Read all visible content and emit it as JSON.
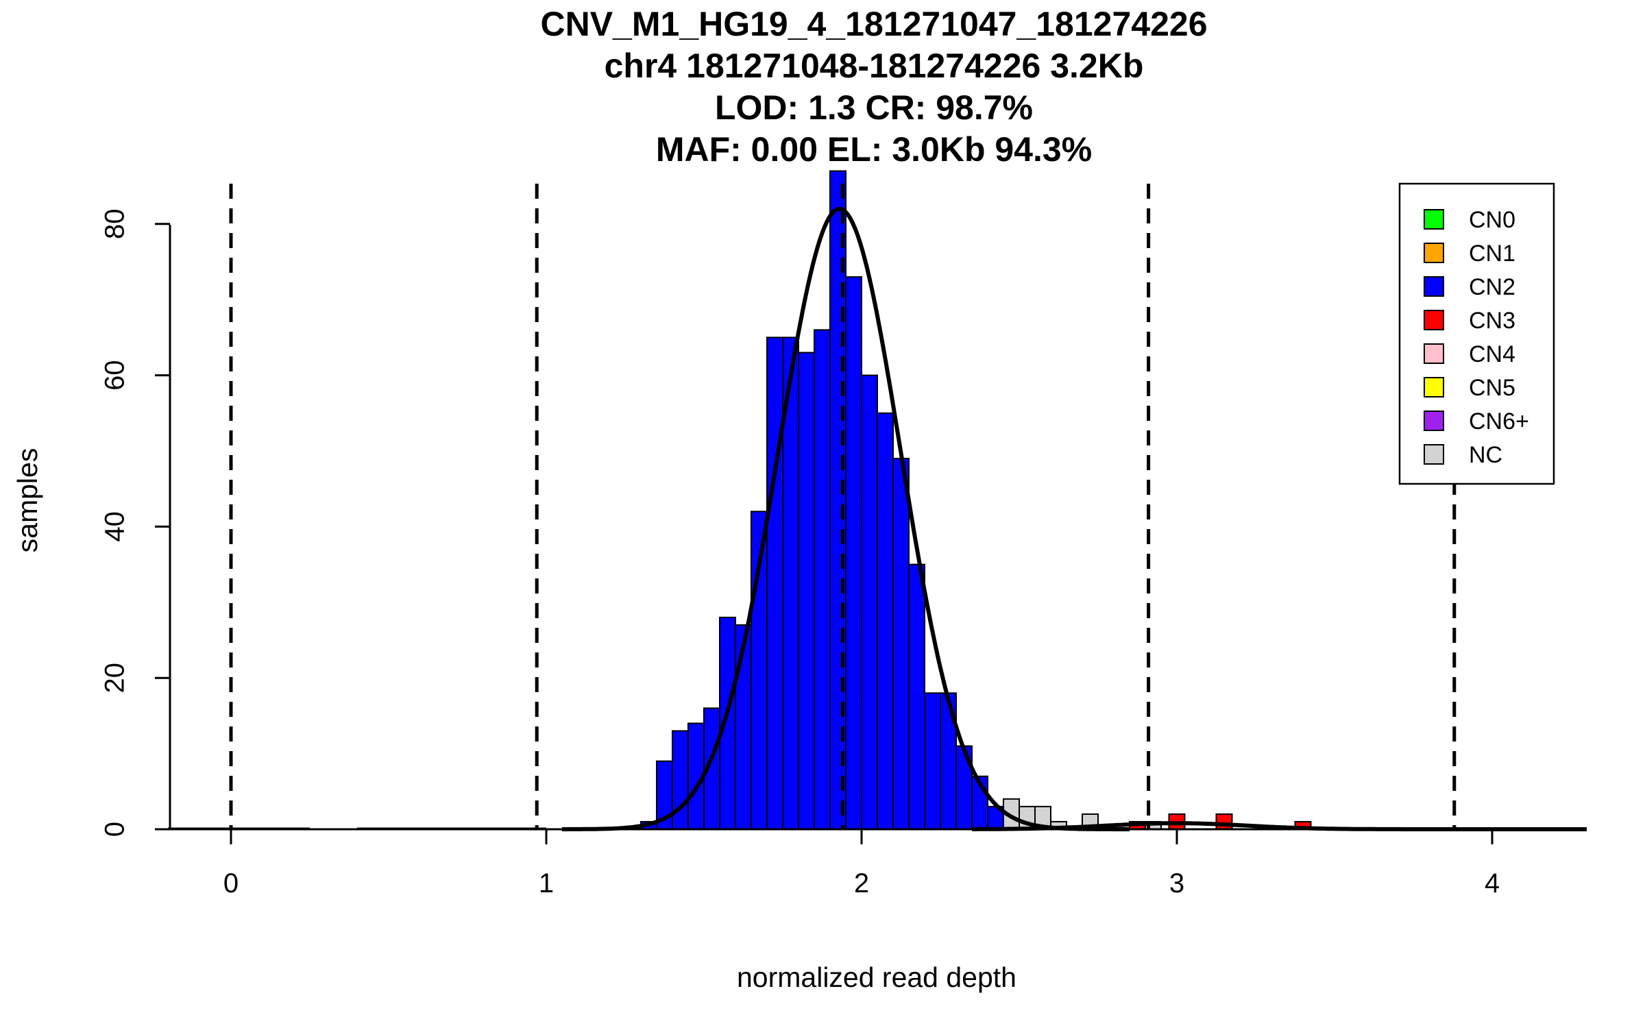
{
  "chart_data": {
    "type": "bar",
    "title_lines": [
      "CNV_M1_HG19_4_181271047_181274226",
      "chr4 181271048-181274226 3.2Kb",
      "LOD: 1.3 CR: 98.7%",
      "MAF: 0.00 EL: 3.0Kb 94.3%"
    ],
    "xlabel": "normalized read depth",
    "ylabel": "samples",
    "xlim": [
      -0.2,
      4.3
    ],
    "ylim": [
      0,
      87
    ],
    "xticks": [
      "0",
      "1",
      "2",
      "3",
      "4"
    ],
    "yticks": [
      "0",
      "20",
      "40",
      "60",
      "80"
    ],
    "grid": false,
    "legend_position": "top-right",
    "legend": [
      {
        "label": "CN0",
        "color": "#00ff00"
      },
      {
        "label": "CN1",
        "color": "#ffa500"
      },
      {
        "label": "CN2",
        "color": "#0000ff"
      },
      {
        "label": "CN3",
        "color": "#ff0000"
      },
      {
        "label": "CN4",
        "color": "#ffc0cb"
      },
      {
        "label": "CN5",
        "color": "#ffff00"
      },
      {
        "label": "CN6+",
        "color": "#a020f0"
      },
      {
        "label": "NC",
        "color": "#d3d3d3"
      }
    ],
    "bin_width": 0.05,
    "series": [
      {
        "name": "CN2",
        "color": "#0000ff",
        "bins": [
          [
            1.3,
            1.35,
            1
          ],
          [
            1.35,
            1.4,
            9
          ],
          [
            1.4,
            1.45,
            13
          ],
          [
            1.45,
            1.5,
            14
          ],
          [
            1.5,
            1.55,
            16
          ],
          [
            1.55,
            1.6,
            28
          ],
          [
            1.6,
            1.65,
            27
          ],
          [
            1.65,
            1.7,
            42
          ],
          [
            1.7,
            1.75,
            65
          ],
          [
            1.75,
            1.8,
            65
          ],
          [
            1.8,
            1.85,
            63
          ],
          [
            1.85,
            1.9,
            66
          ],
          [
            1.9,
            1.95,
            87
          ],
          [
            1.95,
            2.0,
            73
          ],
          [
            2.0,
            2.05,
            60
          ],
          [
            2.05,
            2.1,
            55
          ],
          [
            2.1,
            2.15,
            49
          ],
          [
            2.15,
            2.2,
            35
          ],
          [
            2.2,
            2.25,
            18
          ],
          [
            2.25,
            2.3,
            18
          ],
          [
            2.3,
            2.35,
            11
          ],
          [
            2.35,
            2.4,
            7
          ],
          [
            2.4,
            2.45,
            3
          ]
        ]
      },
      {
        "name": "NC",
        "color": "#d3d3d3",
        "bins": [
          [
            2.45,
            2.5,
            4
          ],
          [
            2.5,
            2.55,
            3
          ],
          [
            2.55,
            2.6,
            3
          ],
          [
            2.6,
            2.65,
            1
          ],
          [
            2.7,
            2.75,
            2
          ],
          [
            2.9,
            2.95,
            1
          ]
        ]
      },
      {
        "name": "CN3",
        "color": "#ff0000",
        "bins": [
          [
            2.85,
            2.9,
            1
          ],
          [
            2.975,
            3.025,
            2
          ],
          [
            3.125,
            3.175,
            2
          ],
          [
            3.375,
            3.425,
            1
          ]
        ]
      }
    ],
    "baseline_segments": [
      [
        -0.2,
        0.25
      ],
      [
        0.4,
        1.0
      ],
      [
        1.05,
        1.3
      ],
      [
        3.45,
        4.1
      ]
    ],
    "dashed_lines_x": [
      0,
      0.97,
      1.94,
      2.91,
      3.88
    ],
    "curves": [
      {
        "name": "CN2 fit",
        "mean": 1.93,
        "sd": 0.195,
        "peak": 82,
        "range": [
          1.05,
          2.85
        ]
      },
      {
        "name": "CN3 fit",
        "mean": 3.0,
        "sd": 0.22,
        "peak": 0.8,
        "range": [
          2.35,
          4.3
        ]
      }
    ]
  }
}
